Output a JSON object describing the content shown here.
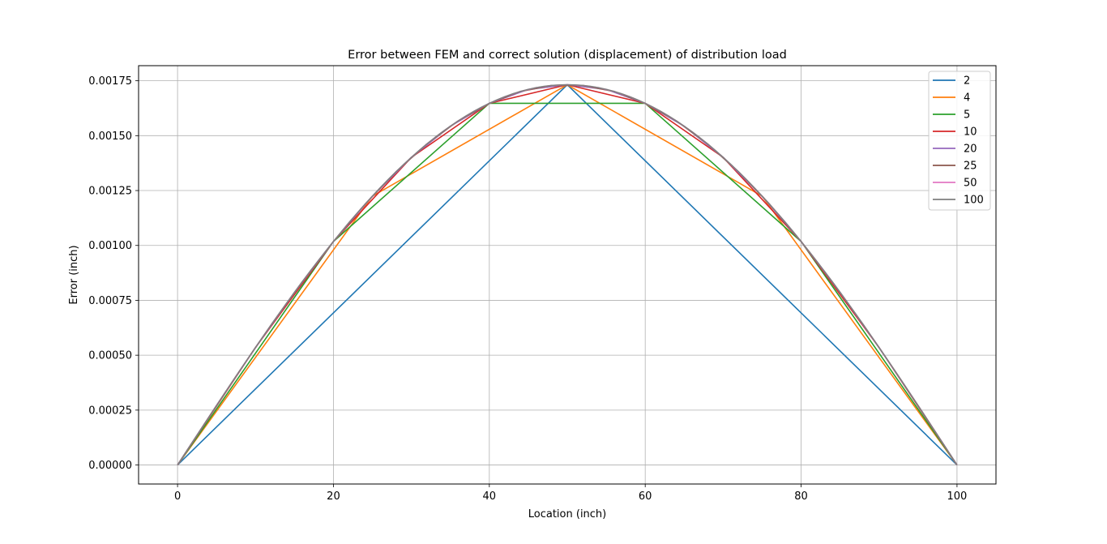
{
  "chart_data": {
    "type": "line",
    "title": "Error between FEM and correct solution (displacement) of distribution load",
    "xlabel": "Location (inch)",
    "ylabel": "Error (inch)",
    "xlim": [
      -5,
      105
    ],
    "ylim": [
      -8.66e-05,
      0.0018188
    ],
    "xticks": [
      0,
      20,
      40,
      60,
      80,
      100
    ],
    "xtick_labels": [
      "0",
      "20",
      "40",
      "60",
      "80",
      "100"
    ],
    "yticks": [
      0,
      0.00025,
      0.0005,
      0.00075,
      0.001,
      0.00125,
      0.0015,
      0.00175
    ],
    "ytick_labels": [
      "0.00000",
      "0.00025",
      "0.00050",
      "0.00075",
      "0.00100",
      "0.00125",
      "0.00150",
      "0.00175"
    ],
    "grid": true,
    "legend_position": "top-right",
    "series": [
      {
        "name": "2",
        "color": "#1f77b4",
        "n": 2
      },
      {
        "name": "4",
        "color": "#ff7f0e",
        "n": 4
      },
      {
        "name": "5",
        "color": "#2ca02c",
        "n": 5
      },
      {
        "name": "10",
        "color": "#d62728",
        "n": 10
      },
      {
        "name": "20",
        "color": "#9467bd",
        "n": 20
      },
      {
        "name": "25",
        "color": "#8c564b",
        "n": 25
      },
      {
        "name": "50",
        "color": "#e377c2",
        "n": 50
      },
      {
        "name": "100",
        "color": "#7f7f7f",
        "n": 100
      }
    ],
    "curve": {
      "peak": 0.001732,
      "x_min": 0,
      "x_max": 100
    }
  }
}
